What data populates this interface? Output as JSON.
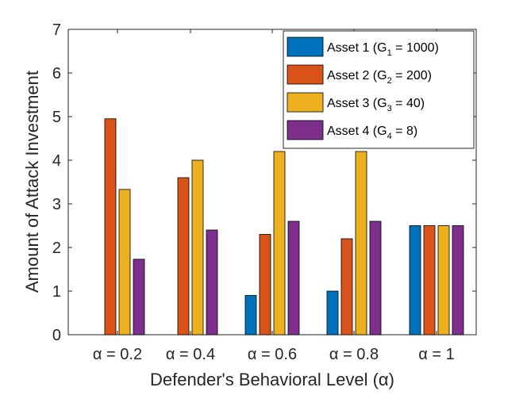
{
  "chart_data": {
    "type": "bar",
    "title": "",
    "xlabel": "Defender's Behavioral Level (α)",
    "ylabel": "Amount of Attack Investment",
    "categories": [
      "α = 0.2",
      "α = 0.4",
      "α = 0.6",
      "α = 0.8",
      "α = 1"
    ],
    "ylim": [
      0,
      7
    ],
    "yticks": [
      0,
      1,
      2,
      3,
      4,
      5,
      6,
      7
    ],
    "grid": false,
    "legend_position": "top-right",
    "series": [
      {
        "name": "Asset 1 (G",
        "sub": "1",
        "suffix": " = 1000)",
        "color": "#0072BD",
        "values": [
          0,
          0,
          0.9,
          1.0,
          2.5
        ]
      },
      {
        "name": "Asset 2 (G",
        "sub": "2",
        "suffix": " = 200)",
        "color": "#D95319",
        "values": [
          4.95,
          3.6,
          2.3,
          2.2,
          2.5
        ]
      },
      {
        "name": "Asset 3 (G",
        "sub": "3",
        "suffix": " = 40)",
        "color": "#EDB120",
        "values": [
          3.33,
          4.0,
          4.2,
          4.2,
          2.5
        ]
      },
      {
        "name": "Asset 4 (G",
        "sub": "4",
        "suffix": " = 8)",
        "color": "#7E2F8E",
        "values": [
          1.73,
          2.4,
          2.6,
          2.6,
          2.5
        ]
      }
    ]
  }
}
